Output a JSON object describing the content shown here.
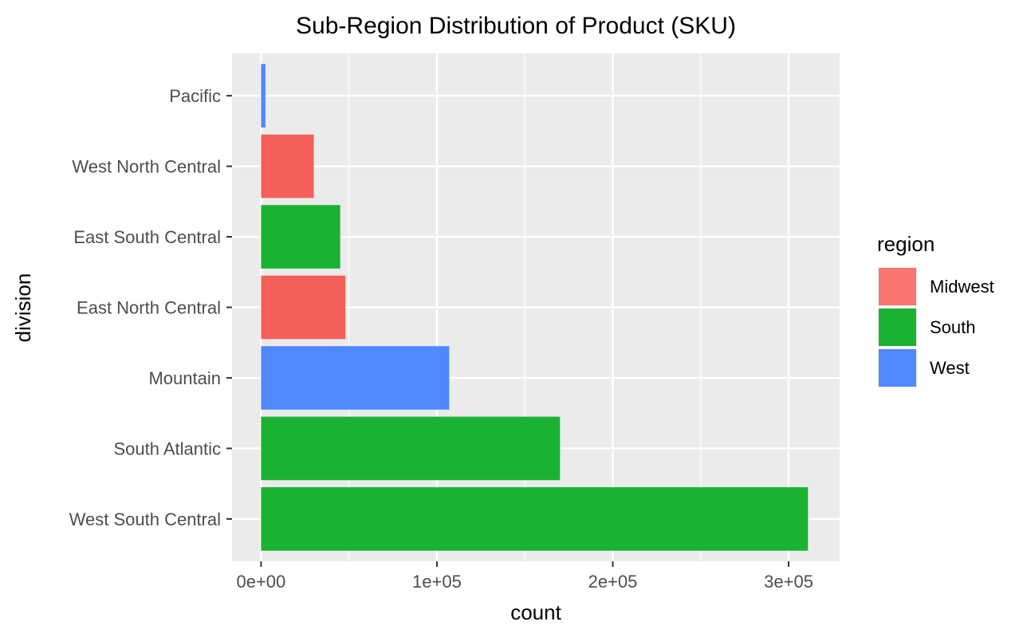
{
  "chart_data": {
    "type": "bar",
    "orientation": "horizontal",
    "title": "Sub-Region Distribution of Product (SKU)",
    "xlabel": "count",
    "ylabel": "division",
    "xlim": [
      -16500,
      329000
    ],
    "xticks": [
      0,
      100000,
      200000,
      300000
    ],
    "xtick_labels": [
      "0e+00",
      "1e+05",
      "2e+05",
      "3e+05"
    ],
    "categories": [
      "West South Central",
      "South Atlantic",
      "Mountain",
      "East North Central",
      "East South Central",
      "West North Central",
      "Pacific"
    ],
    "values": [
      311000,
      170000,
      107000,
      48000,
      45000,
      30000,
      2500
    ],
    "region_of_category": [
      "South",
      "South",
      "West",
      "Midwest",
      "South",
      "Midwest",
      "West"
    ],
    "grid": true,
    "legend": {
      "title": "region",
      "position": "right",
      "entries": [
        {
          "name": "Midwest",
          "color": "#F8766D"
        },
        {
          "name": "South",
          "color": "#1BB233"
        },
        {
          "name": "West",
          "color": "#5088FF"
        }
      ]
    },
    "colors": {
      "Midwest": "#F5605B",
      "South": "#1BB233",
      "West": "#5088FF"
    }
  }
}
